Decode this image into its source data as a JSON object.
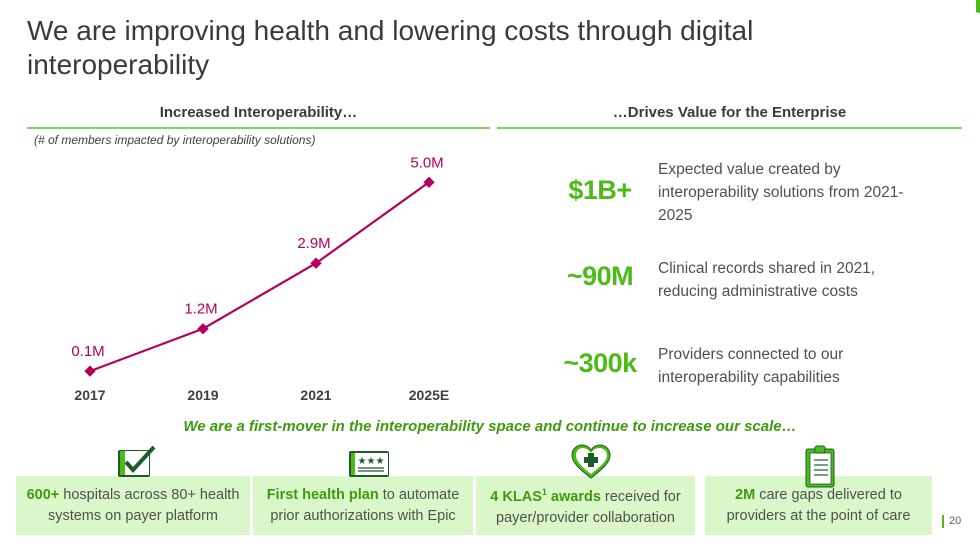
{
  "title": "We are improving health and lowering costs through digital interoperability",
  "left_section": {
    "heading": "Increased Interoperability…",
    "subtitle": "(# of members impacted by interoperability solutions)"
  },
  "right_section": {
    "heading": "…Drives Value for the Enterprise",
    "metrics": [
      {
        "value": "$1B+",
        "description": "Expected value created by interoperability solutions from 2021-2025"
      },
      {
        "value": "~90M",
        "description": "Clinical records shared in 2021, reducing administrative costs"
      },
      {
        "value": "~300k",
        "description": "Providers connected to our interoperability capabilities"
      }
    ]
  },
  "tagline": "We are a first-mover in the interoperability space and continue to increase our scale…",
  "boxes": [
    {
      "icon": "checkbox-icon",
      "bold": "600+",
      "text": " hospitals across 80+ health systems on payer platform"
    },
    {
      "icon": "certificate-icon",
      "bold": "First health plan",
      "text": " to automate prior authorizations with Epic"
    },
    {
      "icon": "heart-plus-icon",
      "bold": "4 KLAS",
      "sup": "1",
      "bold2": " awards",
      "text": " received for payer/provider collaboration"
    },
    {
      "icon": "clipboard-icon",
      "bold": "2M",
      "text": " care gaps delivered to providers at the point of care"
    }
  ],
  "page_number": "20",
  "colors": {
    "accent_green": "#4cbb17",
    "dark_green": "#3f9a0e",
    "box_fill": "#daf7c9",
    "line_color": "#b5005b"
  },
  "chart_data": {
    "type": "line",
    "title": "Increased Interoperability…",
    "subtitle": "(# of members impacted by interoperability solutions)",
    "categories": [
      "2017",
      "2019",
      "2021",
      "2025E"
    ],
    "series": [
      {
        "name": "Members impacted",
        "values": [
          0.1,
          1.2,
          2.9,
          5.0
        ],
        "labels": [
          "0.1M",
          "1.2M",
          "2.9M",
          "5.0M"
        ]
      }
    ],
    "ylim": [
      0,
      5.5
    ],
    "xlabel": "",
    "ylabel": "",
    "grid": false,
    "legend": "none"
  }
}
